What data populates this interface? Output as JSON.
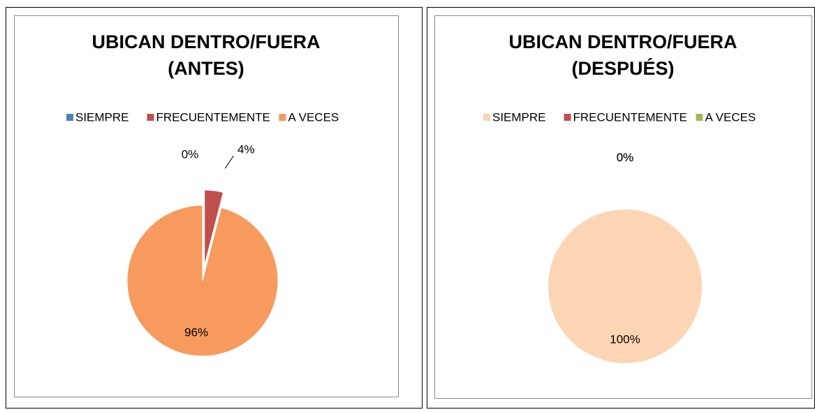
{
  "chart_data": [
    {
      "type": "pie",
      "title": [
        "UBICAN DENTRO/FUERA",
        "(ANTES)"
      ],
      "categories": [
        "SIEMPRE",
        "FRECUENTEMENTE",
        "A VECES"
      ],
      "values": [
        0,
        4,
        96
      ],
      "value_labels": [
        "0%",
        "4%",
        "96%"
      ],
      "colors": [
        "#4f81bd",
        "#c0504d",
        "#f79a5e"
      ],
      "legend": "top"
    },
    {
      "type": "pie",
      "title": [
        "UBICAN DENTRO/FUERA",
        "(DESPUÉS)"
      ],
      "categories": [
        "SIEMPRE",
        "FRECUENTEMENTE",
        "A VECES"
      ],
      "values": [
        100,
        0,
        0
      ],
      "value_labels": [
        "100%",
        "0%",
        "0%"
      ],
      "colors": [
        "#fcd5b4",
        "#c0504d",
        "#9bbb59"
      ],
      "legend": "top"
    }
  ]
}
